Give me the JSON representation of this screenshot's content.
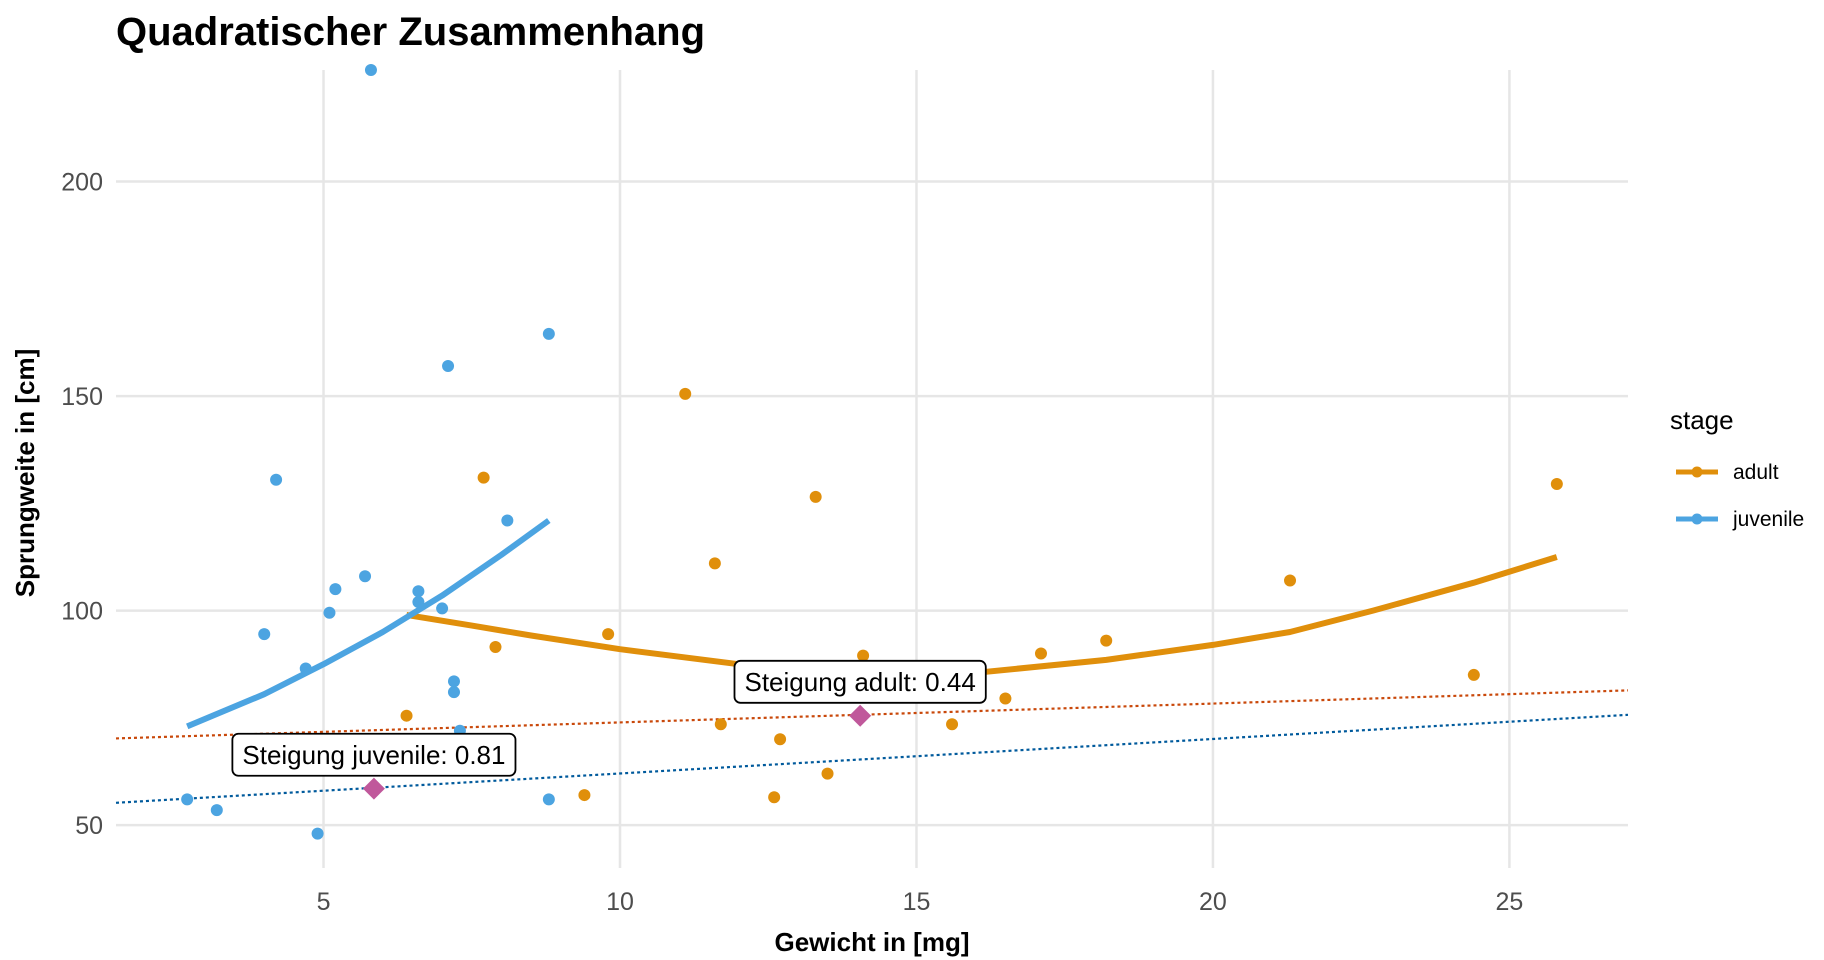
{
  "chart_data": {
    "type": "scatter",
    "title": "Quadratischer Zusammenhang",
    "xlabel": "Gewicht in [mg]",
    "ylabel": "Sprungweite in [cm]",
    "xlim": [
      1.5,
      27
    ],
    "ylim": [
      40,
      226
    ],
    "xticks": [
      5,
      10,
      15,
      20,
      25
    ],
    "yticks": [
      50,
      100,
      150,
      200
    ],
    "grid": true,
    "legend": {
      "title": "stage",
      "position": "right",
      "entries": [
        {
          "label": "adult",
          "color": "#E08F0B"
        },
        {
          "label": "juvenile",
          "color": "#4CA4E1"
        }
      ]
    },
    "series": [
      {
        "name": "adult",
        "color": "#E08F0B",
        "points": [
          [
            6.4,
            75.5
          ],
          [
            7.7,
            131
          ],
          [
            7.9,
            91.5
          ],
          [
            9.4,
            57
          ],
          [
            9.8,
            94.5
          ],
          [
            11.1,
            150.5
          ],
          [
            11.6,
            111
          ],
          [
            11.7,
            73.5
          ],
          [
            12.6,
            56.5
          ],
          [
            12.7,
            70
          ],
          [
            13.3,
            126.5
          ],
          [
            13.5,
            62
          ],
          [
            14.1,
            89.5
          ],
          [
            15.6,
            73.5
          ],
          [
            16.5,
            79.5
          ],
          [
            17.1,
            90
          ],
          [
            18.2,
            93
          ],
          [
            21.3,
            107
          ],
          [
            24.4,
            85
          ],
          [
            25.8,
            129.5
          ]
        ],
        "fit": [
          [
            6.4,
            99
          ],
          [
            7.5,
            96.5
          ],
          [
            8.5,
            94.2
          ],
          [
            10,
            91
          ],
          [
            12,
            87.5
          ],
          [
            14,
            85
          ],
          [
            16,
            85.5
          ],
          [
            18.2,
            88.5
          ],
          [
            20,
            92
          ],
          [
            21.3,
            95
          ],
          [
            22.7,
            100
          ],
          [
            24.4,
            106.5
          ],
          [
            25.8,
            112.5
          ]
        ]
      },
      {
        "name": "juvenile",
        "color": "#4CA4E1",
        "points": [
          [
            2.7,
            56
          ],
          [
            3.2,
            53.5
          ],
          [
            4.0,
            94.5
          ],
          [
            4.2,
            130.5
          ],
          [
            4.7,
            86.5
          ],
          [
            4.9,
            48
          ],
          [
            5.1,
            99.5
          ],
          [
            5.2,
            105
          ],
          [
            5.7,
            108
          ],
          [
            5.8,
            226
          ],
          [
            6.6,
            104.5
          ],
          [
            6.6,
            102
          ],
          [
            7.0,
            100.5
          ],
          [
            7.1,
            157
          ],
          [
            7.2,
            81
          ],
          [
            7.2,
            83.5
          ],
          [
            7.3,
            72
          ],
          [
            8.1,
            121
          ],
          [
            8.8,
            164.5
          ],
          [
            8.8,
            56
          ]
        ],
        "fit": [
          [
            2.7,
            73
          ],
          [
            4.0,
            80.5
          ],
          [
            5.0,
            87.5
          ],
          [
            6.0,
            95
          ],
          [
            7.0,
            103.5
          ],
          [
            8.0,
            113
          ],
          [
            8.8,
            121
          ]
        ]
      }
    ],
    "reference_lines": [
      {
        "name": "adult",
        "color": "#C9480A",
        "style": "dotted",
        "from": [
          1.5,
          70.2
        ],
        "to": [
          27,
          81.4
        ]
      },
      {
        "name": "juvenile",
        "color": "#005A9C",
        "style": "dotted",
        "from": [
          1.5,
          55.2
        ],
        "to": [
          27,
          75.7
        ]
      }
    ],
    "markers": [
      {
        "x": 5.85,
        "y": 58.5,
        "shape": "diamond",
        "color": "#C0589B"
      },
      {
        "x": 14.05,
        "y": 75.5,
        "shape": "diamond",
        "color": "#C0589B"
      }
    ],
    "annotations": [
      {
        "text": "Steigung adult: 0.44",
        "x": 14.05,
        "y": 78.5
      },
      {
        "text": "Steigung juvenile: 0.81",
        "x": 5.85,
        "y": 61.5
      }
    ]
  }
}
